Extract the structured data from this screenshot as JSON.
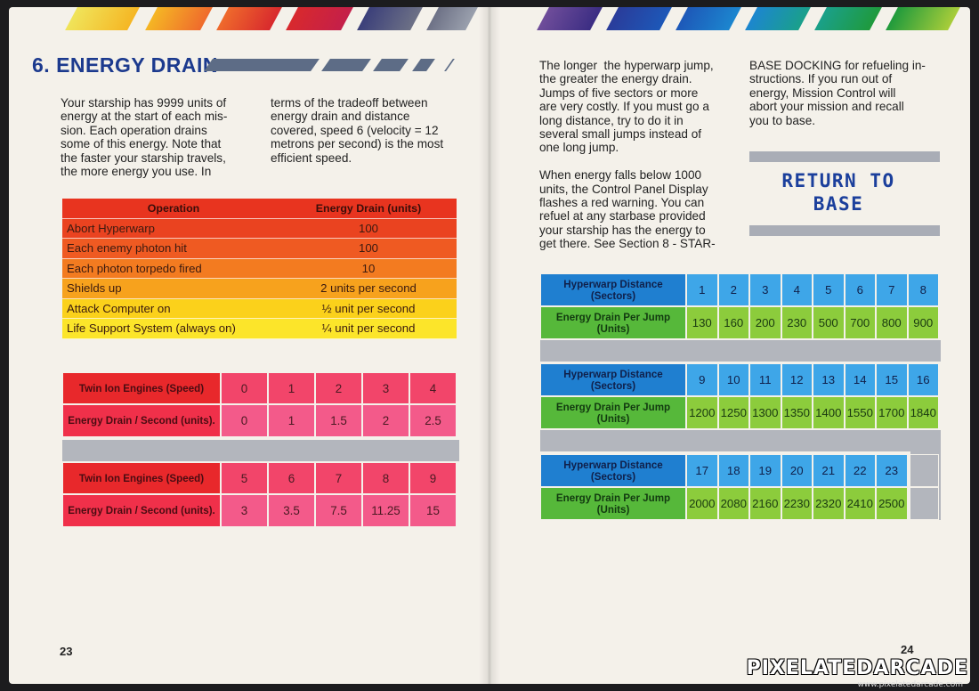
{
  "left_page": {
    "section_heading": "6. ENERGY DRAIN",
    "col1_text": "Your starship has 9999 units of\nenergy at the start of each mis-\nsion. Each operation drains\nsome of this energy. Note that\nthe faster your starship travels,\nthe more energy you use. In",
    "col2_text": "terms of the tradeoff between\nenergy drain and distance\ncovered, speed 6 (velocity = 12\nmetrons per second) is the most\nefficient speed.",
    "operation_table": {
      "headers": [
        "Operation",
        "Energy Drain (units)"
      ],
      "rows": [
        [
          "Abort Hyperwarp",
          "100"
        ],
        [
          "Each enemy photon hit",
          "100"
        ],
        [
          "Each photon torpedo fired",
          "10"
        ],
        [
          "Shields up",
          "2 units per second"
        ],
        [
          "Attack Computer on",
          "½ unit per second"
        ],
        [
          "Life Support System (always on)",
          "¼ unit per second"
        ]
      ],
      "colors": [
        "#e8341f",
        "#ea4320",
        "#ef5a22",
        "#f37b20",
        "#f7a21d",
        "#fbd11b",
        "#fce52a"
      ]
    },
    "engine_tables": [
      {
        "speed_label": "Twin Ion Engines (Speed)",
        "drain_label": "Energy Drain / Second (units).",
        "speeds": [
          "0",
          "1",
          "2",
          "3",
          "4"
        ],
        "drains": [
          "0",
          "1",
          "1.5",
          "2",
          "2.5"
        ]
      },
      {
        "speed_label": "Twin Ion Engines (Speed)",
        "drain_label": "Energy Drain / Second (units).",
        "speeds": [
          "5",
          "6",
          "7",
          "8",
          "9"
        ],
        "drains": [
          "3",
          "3.5",
          "7.5",
          "11.25",
          "15"
        ]
      }
    ],
    "page_number": "23",
    "colors": {
      "label_red": "#e8282b",
      "value_pink": "#f2456a",
      "label_red2": "#f0304a",
      "value_pink2": "#f35a8a"
    }
  },
  "right_page": {
    "col1_text": "The longer  the hyperwarp jump,\nthe greater the energy drain.\nJumps of five sectors or more\nare very costly. If you must go a\nlong distance, try to do it in\nseveral small jumps instead of\none long jump.\n\nWhen energy falls below 1000\nunits, the Control Panel Display\nflashes a red warning. You can\nrefuel at any starbase provided\nyour starship has the energy to\nget there. See Section 8 - STAR-",
    "col2_text": "BASE DOCKING for refueling in-\nstructions. If you run out of\nenergy, Mission Control will\nabort your mission and recall\nyou to base.",
    "return_to_base": [
      "RETURN TO",
      "BASE"
    ],
    "hyperwarp_tables": [
      {
        "distance_label": "Hyperwarp Distance (Sectors)",
        "drain_label": "Energy Drain Per Jump (Units)",
        "distances": [
          "1",
          "2",
          "3",
          "4",
          "5",
          "6",
          "7",
          "8"
        ],
        "drains": [
          "130",
          "160",
          "200",
          "230",
          "500",
          "700",
          "800",
          "900"
        ]
      },
      {
        "distance_label": "Hyperwarp Distance (Sectors)",
        "drain_label": "Energy Drain Per Jump (Units)",
        "distances": [
          "9",
          "10",
          "11",
          "12",
          "13",
          "14",
          "15",
          "16"
        ],
        "drains": [
          "1200",
          "1250",
          "1300",
          "1350",
          "1400",
          "1550",
          "1700",
          "1840"
        ]
      },
      {
        "distance_label": "Hyperwarp Distance (Sectors)",
        "drain_label": "Energy Drain Per Jump (Units)",
        "distances": [
          "17",
          "18",
          "19",
          "20",
          "21",
          "22",
          "23"
        ],
        "drains": [
          "2000",
          "2080",
          "2160",
          "2230",
          "2320",
          "2410",
          "2500"
        ]
      }
    ],
    "page_number": "24",
    "colors": {
      "blue_label": "#1f7fd0",
      "blue_cell": "#3ea6e8",
      "green_label": "#56b83a",
      "green_cell": "#8ccc3c",
      "gray_band": "#b3b6bd"
    }
  },
  "watermark": {
    "text": "PIXELATEDARCADE",
    "url": "www.pixelatedarcade.com"
  }
}
